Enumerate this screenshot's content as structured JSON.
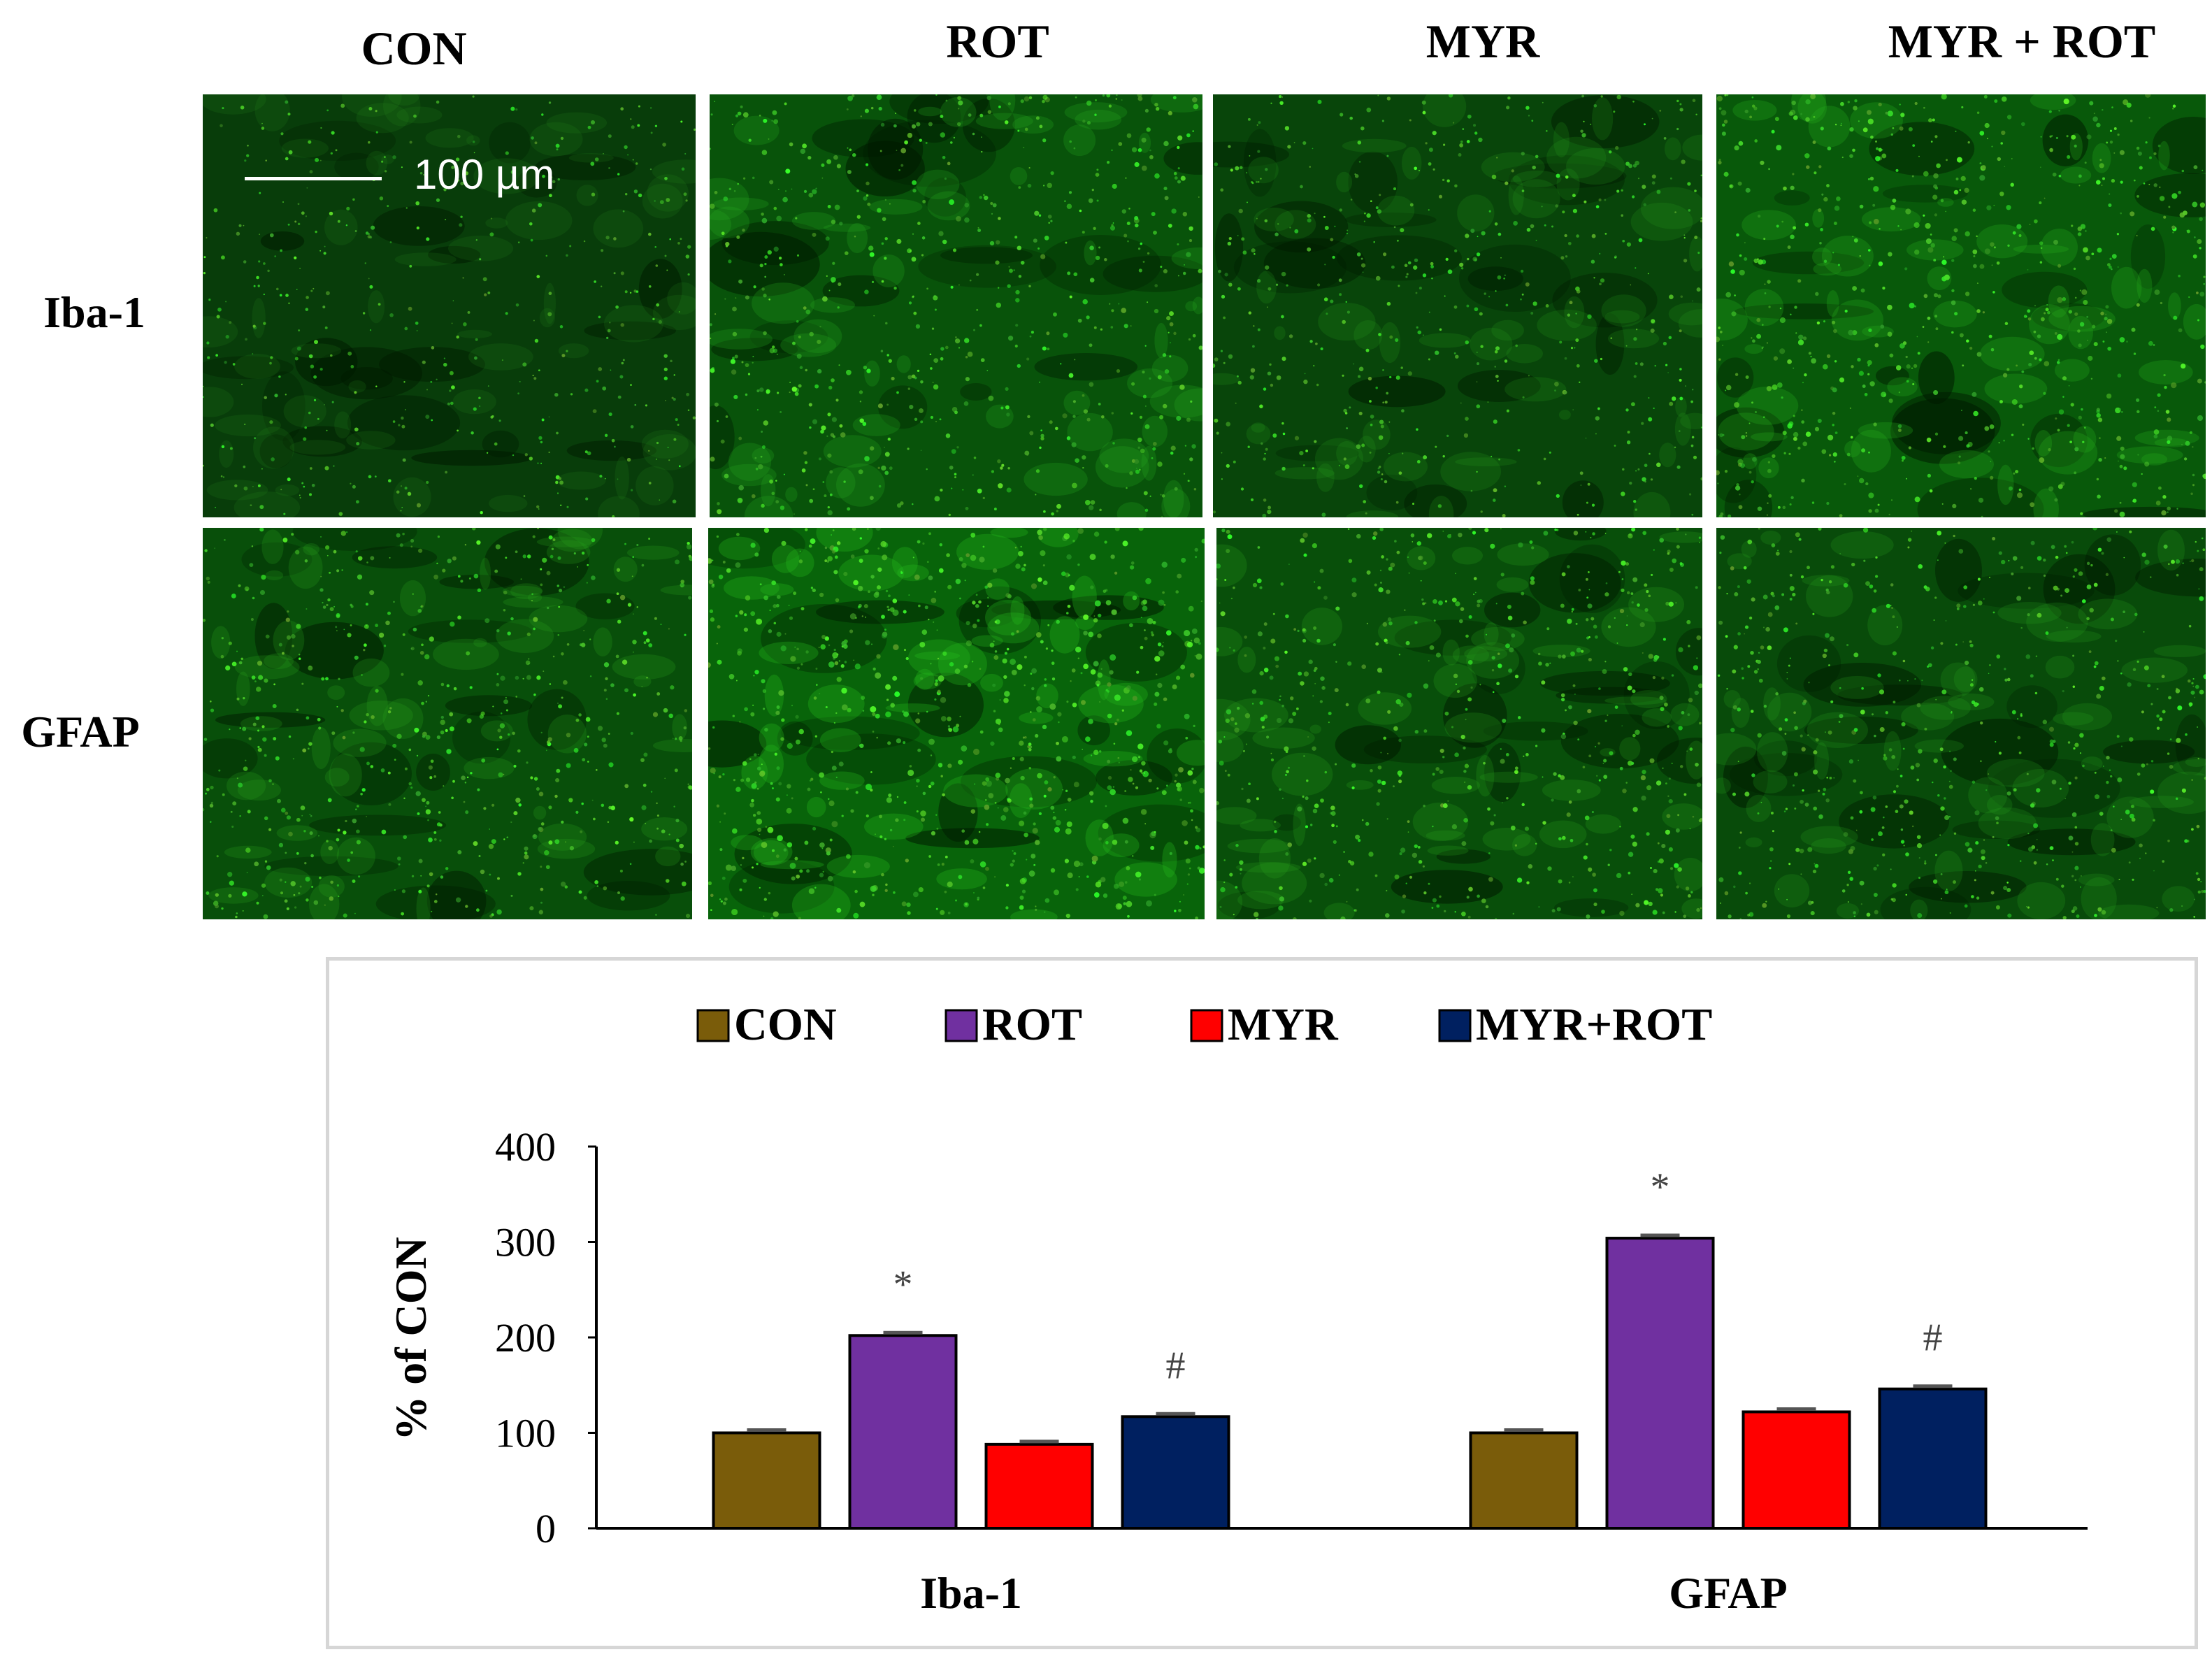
{
  "figure": {
    "column_headers": [
      "CON",
      "ROT",
      "MYR",
      "MYR + ROT"
    ],
    "row_headers": [
      "Iba-1",
      "GFAP"
    ],
    "scale_bar_label": "100 µm",
    "panels": [
      {
        "row": "Iba-1",
        "group": "CON",
        "intensity": 0.3
      },
      {
        "row": "Iba-1",
        "group": "ROT",
        "intensity": 0.62
      },
      {
        "row": "Iba-1",
        "group": "MYR",
        "intensity": 0.42
      },
      {
        "row": "Iba-1",
        "group": "MYR + ROT",
        "intensity": 0.7
      },
      {
        "row": "GFAP",
        "group": "CON",
        "intensity": 0.55
      },
      {
        "row": "GFAP",
        "group": "ROT",
        "intensity": 0.85
      },
      {
        "row": "GFAP",
        "group": "MYR",
        "intensity": 0.55
      },
      {
        "row": "GFAP",
        "group": "MYR + ROT",
        "intensity": 0.5
      }
    ]
  },
  "chart_data": {
    "type": "bar",
    "categories": [
      "Iba-1",
      "GFAP"
    ],
    "series": [
      {
        "name": "CON",
        "color": "#7a5c0a",
        "values": [
          100,
          100
        ]
      },
      {
        "name": "ROT",
        "color": "#7030a0",
        "values": [
          202,
          304
        ]
      },
      {
        "name": "MYR",
        "color": "#ff0000",
        "values": [
          88,
          122
        ]
      },
      {
        "name": "MYR+ROT",
        "color": "#002060",
        "values": [
          117,
          146
        ]
      }
    ],
    "annotations": [
      {
        "category": "Iba-1",
        "series": "ROT",
        "text": "*"
      },
      {
        "category": "Iba-1",
        "series": "MYR+ROT",
        "text": "#"
      },
      {
        "category": "GFAP",
        "series": "ROT",
        "text": "*"
      },
      {
        "category": "GFAP",
        "series": "MYR+ROT",
        "text": "#"
      }
    ],
    "ylabel": "% of CON",
    "xlabel": "",
    "ylim": [
      0,
      400
    ],
    "yticks": [
      0,
      100,
      200,
      300,
      400
    ],
    "legend_position": "top",
    "grid": false,
    "error_bars": true
  }
}
